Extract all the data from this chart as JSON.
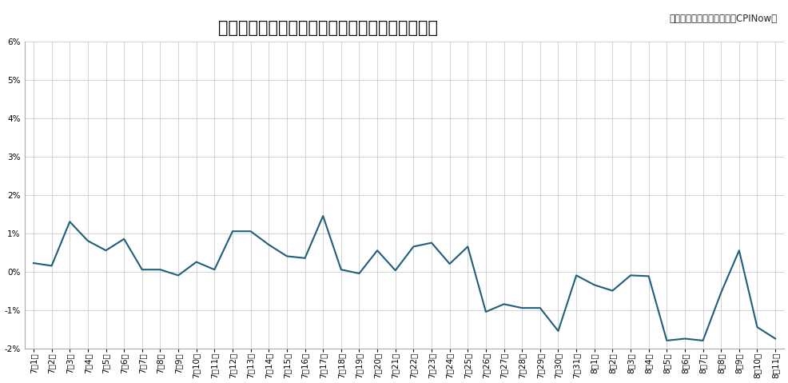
{
  "title": "即席カップめん　日次物価指数　（前年同日比）",
  "source_text": "出典：ナウキャスト「日経CPINow」",
  "line_color": "#1F5F7A",
  "background_color": "#ffffff",
  "grid_color": "#cccccc",
  "labels": [
    "7月1日",
    "7月2日",
    "7月3日",
    "7月4日",
    "7月5日",
    "7月6日",
    "7月7日",
    "7月8日",
    "7月9日",
    "7月10日",
    "7月11日",
    "7月12日",
    "7月13日",
    "7月14日",
    "7月15日",
    "7月16日",
    "7月17日",
    "7月18日",
    "7月19日",
    "7月20日",
    "7月21日",
    "7月22日",
    "7月23日",
    "7月24日",
    "7月25日",
    "7月26日",
    "7月27日",
    "7月28日",
    "7月29日",
    "7月30日",
    "7月31日",
    "8月1日",
    "8月2日",
    "8月3日",
    "8月4日",
    "8月5日",
    "8月6日",
    "8月7日",
    "8月8日",
    "8月9日",
    "8月10日",
    "8月11日"
  ],
  "values": [
    0.22,
    0.15,
    1.3,
    0.8,
    0.55,
    0.85,
    0.05,
    0.05,
    -0.1,
    0.25,
    0.05,
    1.05,
    1.05,
    0.7,
    0.4,
    0.35,
    1.45,
    0.05,
    -0.05,
    0.55,
    0.03,
    0.65,
    0.75,
    0.2,
    0.65,
    -1.05,
    -0.85,
    -0.95,
    -0.95,
    -1.55,
    -0.1,
    -0.35,
    -0.5,
    -0.1,
    -0.12,
    -1.8,
    -1.75,
    -1.8,
    -0.55,
    0.55,
    -1.45,
    -1.75
  ],
  "ylim": [
    -2.0,
    6.0
  ],
  "yticks": [
    -2,
    -1,
    0,
    1,
    2,
    3,
    4,
    5,
    6
  ],
  "title_fontsize": 15,
  "source_fontsize": 8.5,
  "tick_fontsize": 7.5,
  "linewidth": 1.5
}
